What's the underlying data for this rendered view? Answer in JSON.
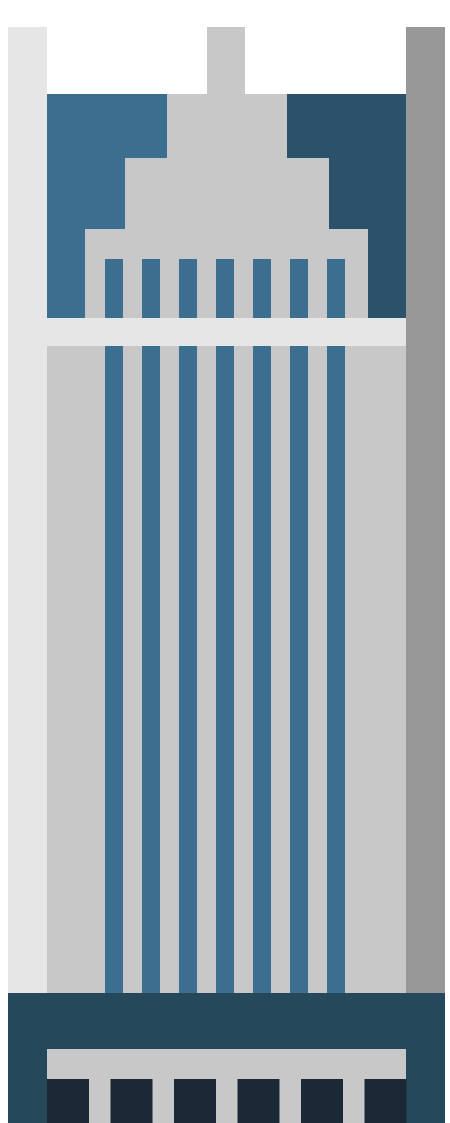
{
  "illustration": {
    "subject": "skyscraper-icon",
    "colors": {
      "background": "#ffffff",
      "left_pilaster": "#e6e6e6",
      "right_pilaster": "#989898",
      "facade": "#c8c8c8",
      "crown_glass_left": "#3c6e8f",
      "crown_glass_right": "#2c526b",
      "stripe": "#3c6e8f",
      "cornice_band": "#e6e6e6",
      "base": "#25495b",
      "base_ledge": "#c8c8c8",
      "doors": "#1a2935"
    },
    "stripe_count": 7,
    "door_count": 6
  }
}
